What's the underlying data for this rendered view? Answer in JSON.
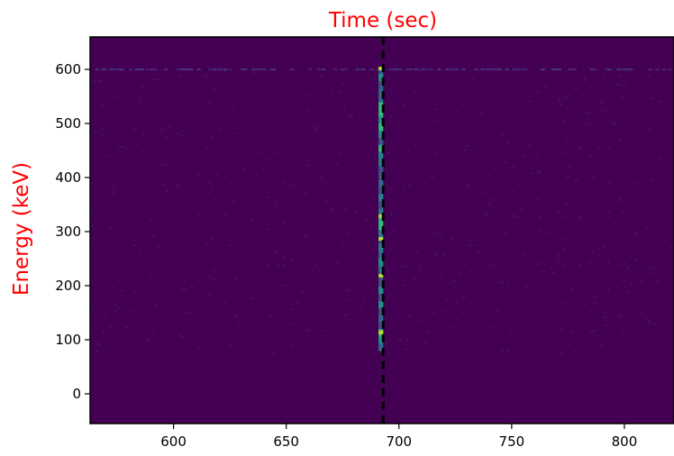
{
  "chart_data": {
    "type": "heatmap",
    "title": "Time (sec)",
    "xlabel": "",
    "ylabel": "Energy (keV)",
    "label_color": "#ff0000",
    "colormap": "viridis",
    "background_color": "#440154",
    "xlim": [
      563,
      822
    ],
    "ylim": [
      -55,
      660
    ],
    "x_ticks": [
      600,
      650,
      700,
      750,
      800
    ],
    "y_ticks": [
      0,
      100,
      200,
      300,
      400,
      500,
      600
    ],
    "x_tick_labels": [
      "600",
      "650",
      "700",
      "750",
      "800"
    ],
    "y_tick_labels": [
      "0",
      "100",
      "200",
      "300",
      "400",
      "500",
      "600"
    ],
    "grid": false,
    "event": {
      "time": 692,
      "energy_range": [
        80,
        605
      ]
    },
    "vline": {
      "x": 693,
      "style": "dashed",
      "color": "#000000"
    },
    "background_line": {
      "energy": 600
    }
  }
}
